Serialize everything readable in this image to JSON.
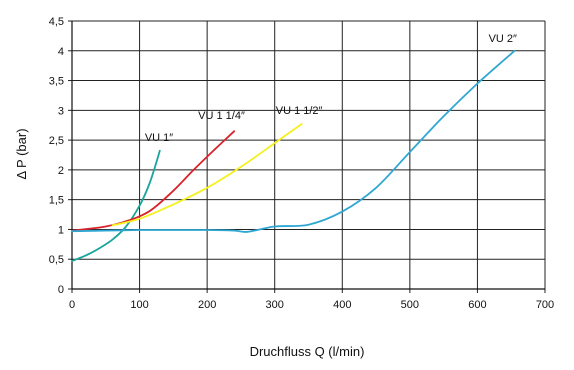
{
  "chart_data": {
    "type": "line",
    "xlabel": "Druchfluss Q (l/min)",
    "ylabel": "Δ P (bar)",
    "xlim": [
      0,
      700
    ],
    "ylim": [
      0,
      4.5
    ],
    "grid": true,
    "x_ticks": [
      "0",
      "100",
      "200",
      "300",
      "400",
      "500",
      "600",
      "700"
    ],
    "y_ticks": [
      "0",
      "0,5",
      "1",
      "1,5",
      "2",
      "2,5",
      "3",
      "3,5",
      "4",
      "4,5"
    ],
    "series": [
      {
        "name": "VU 1″",
        "color": "#1aa59c",
        "x": [
          0,
          20,
          40,
          60,
          80,
          100,
          115,
          130
        ],
        "y": [
          0.47,
          0.56,
          0.68,
          0.83,
          1.05,
          1.4,
          1.78,
          2.32
        ]
      },
      {
        "name": "VU 1 1/4″",
        "color": "#d8232a",
        "x": [
          0,
          25,
          50,
          75,
          100,
          120,
          150,
          180,
          210,
          240
        ],
        "y": [
          0.98,
          1.01,
          1.05,
          1.12,
          1.22,
          1.35,
          1.65,
          2.0,
          2.33,
          2.65
        ]
      },
      {
        "name": "VU 1 1/2″",
        "color": "#f5f01e",
        "x": [
          60,
          100,
          150,
          200,
          250,
          300,
          340
        ],
        "y": [
          1.07,
          1.18,
          1.42,
          1.7,
          2.05,
          2.45,
          2.77
        ]
      },
      {
        "name": "VU 2″",
        "color": "#2fa7d3",
        "x": [
          0,
          50,
          100,
          150,
          200,
          240,
          260,
          300,
          350,
          400,
          450,
          500,
          550,
          600,
          655
        ],
        "y": [
          0.97,
          0.98,
          0.99,
          0.99,
          0.99,
          0.98,
          0.96,
          1.05,
          1.08,
          1.3,
          1.7,
          2.3,
          2.9,
          3.45,
          4.0
        ]
      }
    ]
  }
}
